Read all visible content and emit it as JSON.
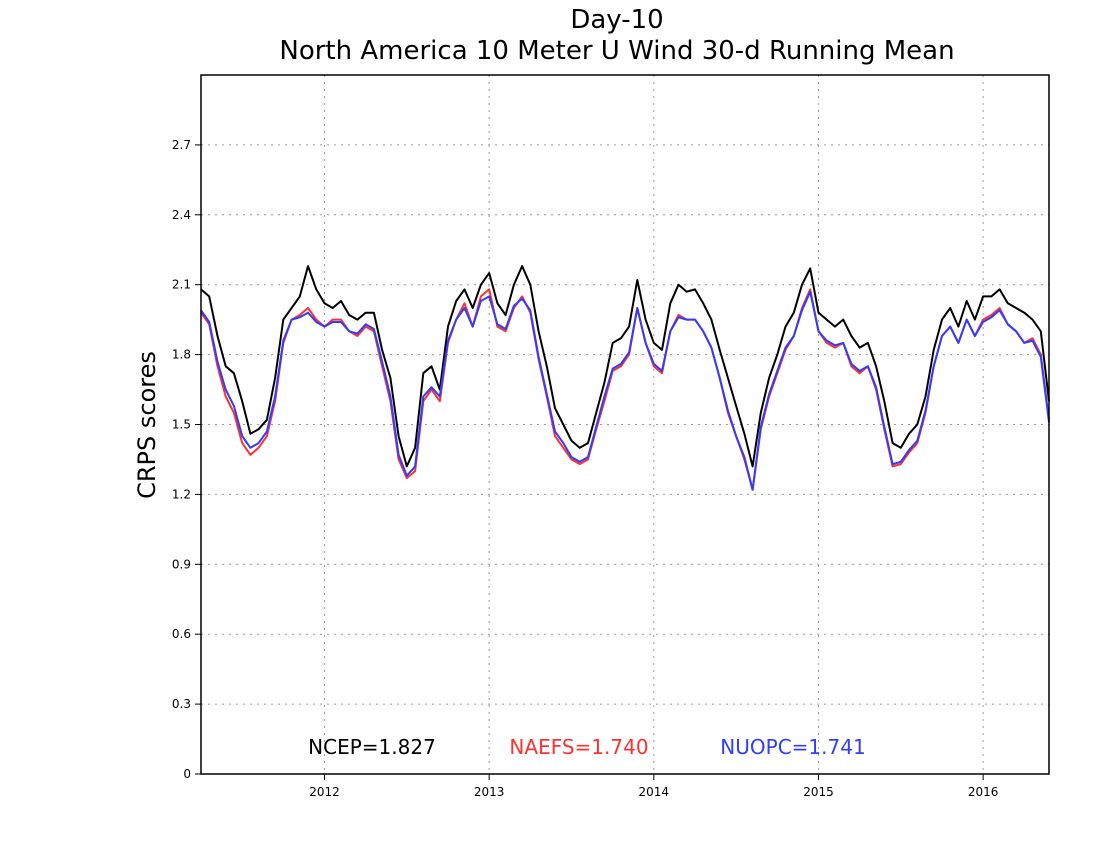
{
  "chart_data": {
    "type": "line",
    "title": "Day-10",
    "subtitle": "North America 10 Meter U Wind 30-d Running Mean",
    "xlabel": "",
    "ylabel": "CRPS scores",
    "xlim": [
      2011.25,
      2016.4
    ],
    "ylim": [
      0,
      3.0
    ],
    "yticks": [
      0,
      0.3,
      0.6,
      0.9,
      1.2,
      1.5,
      1.8,
      2.1,
      2.4,
      2.7
    ],
    "ytick_labels": [
      "0",
      "0.3",
      "0.6",
      "0.9",
      "1.2",
      "1.5",
      "1.8",
      "2.1",
      "2.4",
      "2.7"
    ],
    "xticks": [
      2012,
      2013,
      2014,
      2015,
      2016
    ],
    "xtick_labels": [
      "2012",
      "2013",
      "2014",
      "2015",
      "2016"
    ],
    "grid": true,
    "legend_placement": "bottom-inside",
    "series": [
      {
        "name": "NCEP",
        "legend_label": "NCEP=1.827",
        "color": "#000000",
        "x": [
          2011.25,
          2011.3,
          2011.35,
          2011.4,
          2011.45,
          2011.5,
          2011.55,
          2011.6,
          2011.65,
          2011.7,
          2011.75,
          2011.8,
          2011.85,
          2011.9,
          2011.95,
          2012.0,
          2012.05,
          2012.1,
          2012.15,
          2012.2,
          2012.25,
          2012.3,
          2012.35,
          2012.4,
          2012.45,
          2012.5,
          2012.55,
          2012.6,
          2012.65,
          2012.7,
          2012.75,
          2012.8,
          2012.85,
          2012.9,
          2012.95,
          2013.0,
          2013.05,
          2013.1,
          2013.15,
          2013.2,
          2013.25,
          2013.3,
          2013.35,
          2013.4,
          2013.45,
          2013.5,
          2013.55,
          2013.6,
          2013.65,
          2013.7,
          2013.75,
          2013.8,
          2013.85,
          2013.9,
          2013.95,
          2014.0,
          2014.05,
          2014.1,
          2014.15,
          2014.2,
          2014.25,
          2014.3,
          2014.35,
          2014.4,
          2014.45,
          2014.5,
          2014.55,
          2014.6,
          2014.65,
          2014.7,
          2014.75,
          2014.8,
          2014.85,
          2014.9,
          2014.95,
          2015.0,
          2015.05,
          2015.1,
          2015.15,
          2015.2,
          2015.25,
          2015.3,
          2015.35,
          2015.4,
          2015.45,
          2015.5,
          2015.55,
          2015.6,
          2015.65,
          2015.7,
          2015.75,
          2015.8,
          2015.85,
          2015.9,
          2015.95,
          2016.0,
          2016.05,
          2016.1,
          2016.15,
          2016.2,
          2016.25,
          2016.3,
          2016.35,
          2016.4
        ],
        "values": [
          2.08,
          2.05,
          1.88,
          1.75,
          1.72,
          1.6,
          1.46,
          1.48,
          1.52,
          1.7,
          1.95,
          2.0,
          2.05,
          2.18,
          2.08,
          2.02,
          2.0,
          2.03,
          1.97,
          1.95,
          1.98,
          1.98,
          1.82,
          1.7,
          1.45,
          1.32,
          1.4,
          1.72,
          1.75,
          1.65,
          1.92,
          2.03,
          2.08,
          2.0,
          2.1,
          2.15,
          2.02,
          1.97,
          2.1,
          2.18,
          2.1,
          1.9,
          1.75,
          1.57,
          1.5,
          1.43,
          1.4,
          1.42,
          1.55,
          1.68,
          1.85,
          1.87,
          1.92,
          2.12,
          1.95,
          1.85,
          1.82,
          2.02,
          2.1,
          2.07,
          2.08,
          2.02,
          1.95,
          1.82,
          1.7,
          1.58,
          1.46,
          1.32,
          1.55,
          1.7,
          1.8,
          1.92,
          1.98,
          2.1,
          2.17,
          1.98,
          1.95,
          1.92,
          1.95,
          1.88,
          1.83,
          1.85,
          1.75,
          1.6,
          1.42,
          1.4,
          1.46,
          1.5,
          1.62,
          1.82,
          1.95,
          2.0,
          1.92,
          2.03,
          1.95,
          2.05,
          2.05,
          2.08,
          2.02,
          2.0,
          1.98,
          1.95,
          1.9,
          1.6
        ]
      },
      {
        "name": "NAEFS",
        "legend_label": "NAEFS=1.740",
        "color": "#ff3030",
        "x": [
          2011.25,
          2011.3,
          2011.35,
          2011.4,
          2011.45,
          2011.5,
          2011.55,
          2011.6,
          2011.65,
          2011.7,
          2011.75,
          2011.8,
          2011.85,
          2011.9,
          2011.95,
          2012.0,
          2012.05,
          2012.1,
          2012.15,
          2012.2,
          2012.25,
          2012.3,
          2012.35,
          2012.4,
          2012.45,
          2012.5,
          2012.55,
          2012.6,
          2012.65,
          2012.7,
          2012.75,
          2012.8,
          2012.85,
          2012.9,
          2012.95,
          2013.0,
          2013.05,
          2013.1,
          2013.15,
          2013.2,
          2013.25,
          2013.3,
          2013.35,
          2013.4,
          2013.45,
          2013.5,
          2013.55,
          2013.6,
          2013.65,
          2013.7,
          2013.75,
          2013.8,
          2013.85,
          2013.9,
          2013.95,
          2014.0,
          2014.05,
          2014.1,
          2014.15,
          2014.2,
          2014.25,
          2014.3,
          2014.35,
          2014.4,
          2014.45,
          2014.5,
          2014.55,
          2014.6,
          2014.65,
          2014.7,
          2014.75,
          2014.8,
          2014.85,
          2014.9,
          2014.95,
          2015.0,
          2015.05,
          2015.1,
          2015.15,
          2015.2,
          2015.25,
          2015.3,
          2015.35,
          2015.4,
          2015.45,
          2015.5,
          2015.55,
          2015.6,
          2015.65,
          2015.7,
          2015.75,
          2015.8,
          2015.85,
          2015.9,
          2015.95,
          2016.0,
          2016.05,
          2016.1,
          2016.15,
          2016.2,
          2016.25,
          2016.3,
          2016.35,
          2016.4
        ],
        "values": [
          1.98,
          1.93,
          1.75,
          1.62,
          1.55,
          1.42,
          1.37,
          1.4,
          1.45,
          1.6,
          1.85,
          1.95,
          1.97,
          2.0,
          1.95,
          1.92,
          1.95,
          1.95,
          1.9,
          1.88,
          1.92,
          1.9,
          1.75,
          1.6,
          1.35,
          1.27,
          1.3,
          1.6,
          1.65,
          1.6,
          1.85,
          1.95,
          2.02,
          1.92,
          2.05,
          2.08,
          1.92,
          1.9,
          2.0,
          2.05,
          1.98,
          1.78,
          1.62,
          1.45,
          1.4,
          1.35,
          1.33,
          1.35,
          1.48,
          1.6,
          1.73,
          1.75,
          1.8,
          2.0,
          1.85,
          1.75,
          1.72,
          1.9,
          1.97,
          1.95,
          1.95,
          1.9,
          1.83,
          1.7,
          1.55,
          1.45,
          1.35,
          1.22,
          1.48,
          1.62,
          1.72,
          1.82,
          1.88,
          2.0,
          2.08,
          1.9,
          1.85,
          1.83,
          1.85,
          1.75,
          1.72,
          1.75,
          1.65,
          1.48,
          1.32,
          1.33,
          1.38,
          1.42,
          1.55,
          1.75,
          1.88,
          1.92,
          1.85,
          1.95,
          1.88,
          1.95,
          1.97,
          2.0,
          1.93,
          1.9,
          1.85,
          1.87,
          1.8,
          1.52
        ]
      },
      {
        "name": "NUOPC",
        "legend_label": "NUOPC=1.741",
        "color": "#2f3dff",
        "x": [
          2011.25,
          2011.3,
          2011.35,
          2011.4,
          2011.45,
          2011.5,
          2011.55,
          2011.6,
          2011.65,
          2011.7,
          2011.75,
          2011.8,
          2011.85,
          2011.9,
          2011.95,
          2012.0,
          2012.05,
          2012.1,
          2012.15,
          2012.2,
          2012.25,
          2012.3,
          2012.35,
          2012.4,
          2012.45,
          2012.5,
          2012.55,
          2012.6,
          2012.65,
          2012.7,
          2012.75,
          2012.8,
          2012.85,
          2012.9,
          2012.95,
          2013.0,
          2013.05,
          2013.1,
          2013.15,
          2013.2,
          2013.25,
          2013.3,
          2013.35,
          2013.4,
          2013.45,
          2013.5,
          2013.55,
          2013.6,
          2013.65,
          2013.7,
          2013.75,
          2013.8,
          2013.85,
          2013.9,
          2013.95,
          2014.0,
          2014.05,
          2014.1,
          2014.15,
          2014.2,
          2014.25,
          2014.3,
          2014.35,
          2014.4,
          2014.45,
          2014.5,
          2014.55,
          2014.6,
          2014.65,
          2014.7,
          2014.75,
          2014.8,
          2014.85,
          2014.9,
          2014.95,
          2015.0,
          2015.05,
          2015.1,
          2015.15,
          2015.2,
          2015.25,
          2015.3,
          2015.35,
          2015.4,
          2015.45,
          2015.5,
          2015.55,
          2015.6,
          2015.65,
          2015.7,
          2015.75,
          2015.8,
          2015.85,
          2015.9,
          2015.95,
          2016.0,
          2016.05,
          2016.1,
          2016.15,
          2016.2,
          2016.25,
          2016.3,
          2016.35,
          2016.4
        ],
        "values": [
          1.99,
          1.94,
          1.77,
          1.65,
          1.58,
          1.45,
          1.4,
          1.42,
          1.47,
          1.62,
          1.86,
          1.95,
          1.96,
          1.98,
          1.94,
          1.92,
          1.94,
          1.94,
          1.9,
          1.89,
          1.93,
          1.91,
          1.77,
          1.62,
          1.37,
          1.28,
          1.32,
          1.62,
          1.66,
          1.62,
          1.86,
          1.95,
          2.0,
          1.92,
          2.03,
          2.05,
          1.93,
          1.91,
          2.01,
          2.04,
          1.99,
          1.79,
          1.63,
          1.47,
          1.42,
          1.36,
          1.34,
          1.36,
          1.49,
          1.62,
          1.74,
          1.76,
          1.81,
          2.0,
          1.85,
          1.76,
          1.73,
          1.9,
          1.96,
          1.95,
          1.95,
          1.9,
          1.83,
          1.7,
          1.56,
          1.45,
          1.36,
          1.22,
          1.49,
          1.63,
          1.73,
          1.83,
          1.88,
          1.99,
          2.07,
          1.9,
          1.86,
          1.84,
          1.85,
          1.76,
          1.73,
          1.75,
          1.66,
          1.49,
          1.33,
          1.34,
          1.39,
          1.43,
          1.56,
          1.75,
          1.88,
          1.92,
          1.85,
          1.95,
          1.88,
          1.94,
          1.96,
          1.99,
          1.93,
          1.9,
          1.85,
          1.86,
          1.79,
          1.51
        ]
      }
    ]
  }
}
